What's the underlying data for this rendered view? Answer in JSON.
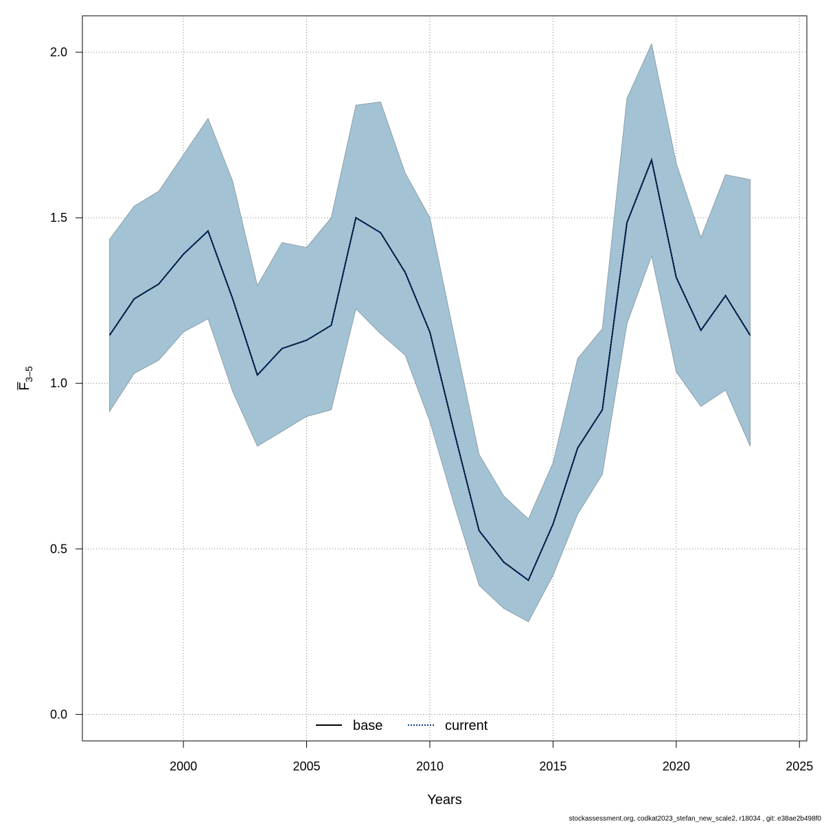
{
  "chart_data": {
    "type": "line",
    "xlabel": "Years",
    "ylabel": "F̅",
    "ylabel_sub": "3–5",
    "xlim": [
      1995.9,
      2025.3
    ],
    "ylim": [
      -0.08,
      2.11
    ],
    "x_ticks": [
      2000,
      2005,
      2010,
      2015,
      2020,
      2025
    ],
    "y_ticks": [
      0.0,
      0.5,
      1.0,
      1.5,
      2.0
    ],
    "y_tick_labels": [
      "0.0",
      "0.5",
      "1.0",
      "1.5",
      "2.0"
    ],
    "grid": true,
    "legend_position": "bottom-center",
    "x": [
      1997,
      1998,
      1999,
      2000,
      2001,
      2002,
      2003,
      2004,
      2005,
      2006,
      2007,
      2008,
      2009,
      2010,
      2011,
      2012,
      2013,
      2014,
      2015,
      2016,
      2017,
      2018,
      2019,
      2020,
      2021,
      2022,
      2023
    ],
    "series": [
      {
        "name": "base",
        "line_style": "solid",
        "color": "#000000",
        "values": [
          1.145,
          1.255,
          1.3,
          1.39,
          1.46,
          1.255,
          1.025,
          1.105,
          1.13,
          1.175,
          1.5,
          1.455,
          1.335,
          1.155,
          0.85,
          0.555,
          0.46,
          0.405,
          0.575,
          0.805,
          0.92,
          1.485,
          1.675,
          1.32,
          1.16,
          1.265,
          1.145
        ]
      },
      {
        "name": "current",
        "line_style": "dotted",
        "color": "#0b3d91",
        "values": [
          1.145,
          1.255,
          1.3,
          1.39,
          1.46,
          1.255,
          1.025,
          1.105,
          1.13,
          1.175,
          1.5,
          1.455,
          1.335,
          1.155,
          0.85,
          0.555,
          0.46,
          0.405,
          0.575,
          0.805,
          0.92,
          1.485,
          1.675,
          1.32,
          1.16,
          1.265,
          1.145
        ]
      }
    ],
    "band": {
      "color": "#a3c3d5",
      "lower": [
        0.915,
        1.03,
        1.07,
        1.155,
        1.195,
        0.975,
        0.81,
        0.855,
        0.9,
        0.92,
        1.225,
        1.15,
        1.085,
        0.885,
        0.63,
        0.39,
        0.32,
        0.28,
        0.42,
        0.605,
        0.725,
        1.18,
        1.385,
        1.035,
        0.93,
        0.98,
        0.81
      ],
      "upper": [
        1.435,
        1.535,
        1.58,
        1.69,
        1.8,
        1.61,
        1.295,
        1.425,
        1.41,
        1.5,
        1.84,
        1.85,
        1.635,
        1.5,
        1.14,
        0.785,
        0.66,
        0.59,
        0.76,
        1.075,
        1.165,
        1.86,
        2.025,
        1.665,
        1.44,
        1.63,
        1.615
      ]
    }
  },
  "footer": "stockassessment.org, codkat2023_stefan_new_scale2, r18034 , git: e38ae2b498f0"
}
